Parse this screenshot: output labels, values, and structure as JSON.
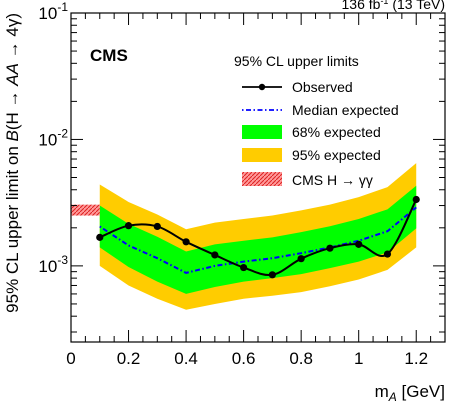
{
  "chart_data": {
    "type": "line",
    "experiment_label": "CMS",
    "lumi_label_parts": {
      "pre": "136 fb",
      "sup": "-1",
      "post": " (13 TeV)"
    },
    "xlabel": "m_A [GeV]",
    "xlabel_parts": {
      "main": "m",
      "sub": "A",
      "unit": " [GeV]"
    },
    "ylabel": "95% CL upper limit on B(H → AA → 4γ)",
    "ylabel_parts": {
      "pre": "95% CL upper limit on ",
      "b": "B",
      "mid": "(H → ",
      "aa": "AA",
      "post": " → 4γ)"
    },
    "xlim": [
      0,
      1.3
    ],
    "ylim": [
      0.00025,
      0.1
    ],
    "yscale": "log",
    "x_ticks": [
      "0",
      "0.2",
      "0.4",
      "0.6",
      "0.8",
      "1",
      "1.2"
    ],
    "y_ticks": [
      {
        "base": "10",
        "exp": "-1"
      },
      {
        "base": "10",
        "exp": "-2"
      },
      {
        "base": "10",
        "exp": "-3"
      }
    ],
    "grid": false,
    "legend": {
      "placement": "top-right",
      "header": "95% CL upper limits",
      "entries": [
        {
          "label": "Observed"
        },
        {
          "label": "Median expected"
        },
        {
          "label": "68% expected"
        },
        {
          "label": "95% expected"
        },
        {
          "label": "CMS H → γγ"
        }
      ]
    },
    "colors": {
      "observed": "#000000",
      "median": "#0000ff",
      "band68": "#00ff00",
      "band95": "#ffcc00",
      "hgg": "#ff4444"
    },
    "x": [
      0.1,
      0.2,
      0.3,
      0.4,
      0.5,
      0.6,
      0.7,
      0.8,
      0.9,
      1.0,
      1.1,
      1.2
    ],
    "series": [
      {
        "name": "Observed",
        "values": [
          0.00168,
          0.00208,
          0.00205,
          0.00155,
          0.00122,
          0.00097,
          0.00085,
          0.00114,
          0.00138,
          0.00148,
          0.00124,
          0.00335
        ]
      },
      {
        "name": "Median expected",
        "values": [
          0.00205,
          0.00145,
          0.00115,
          0.00088,
          0.001,
          0.00108,
          0.00115,
          0.00126,
          0.0014,
          0.00158,
          0.00188,
          0.0029
        ]
      },
      {
        "name": "68% expected",
        "lower": [
          0.0014,
          0.00098,
          0.00075,
          0.0006,
          0.00068,
          0.00075,
          0.0008,
          0.00086,
          0.00096,
          0.00108,
          0.00128,
          0.00198
        ],
        "upper": [
          0.003,
          0.00215,
          0.0017,
          0.0013,
          0.00148,
          0.00158,
          0.00168,
          0.00185,
          0.00206,
          0.00235,
          0.0028,
          0.0043
        ]
      },
      {
        "name": "95% expected",
        "lower": [
          0.001,
          0.0007,
          0.00055,
          0.00045,
          0.0005,
          0.00055,
          0.00058,
          0.00062,
          0.00069,
          0.00078,
          0.00093,
          0.0014
        ],
        "upper": [
          0.0044,
          0.0032,
          0.00255,
          0.00195,
          0.0022,
          0.00235,
          0.0025,
          0.00275,
          0.00305,
          0.0035,
          0.0042,
          0.0065
        ]
      },
      {
        "name": "CMS H → γγ",
        "x": [
          0.0,
          0.1
        ],
        "lower": 0.0025,
        "upper": 0.00305
      }
    ]
  }
}
